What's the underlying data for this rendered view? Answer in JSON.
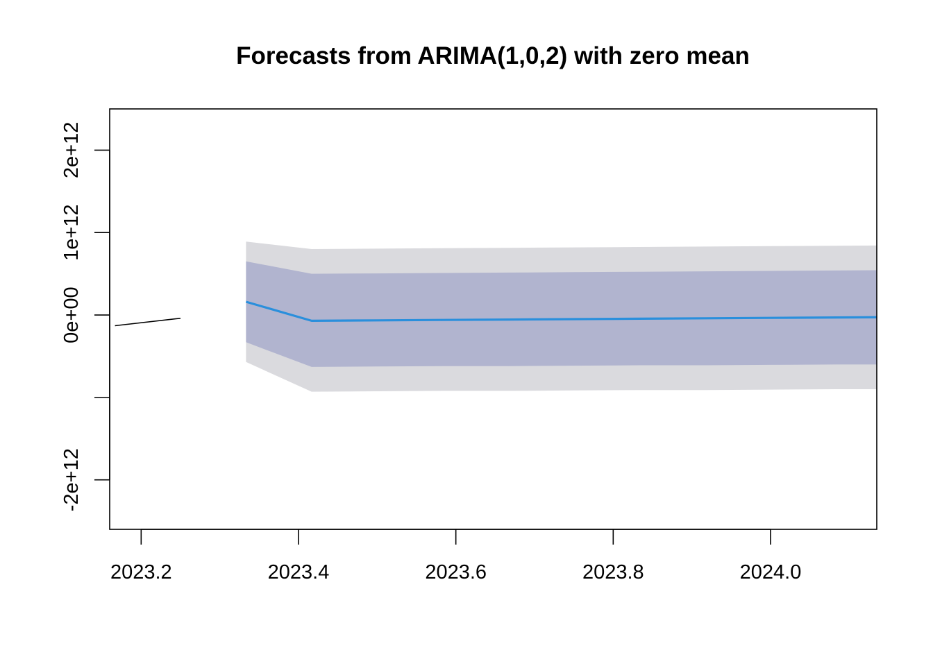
{
  "chart_data": {
    "type": "line",
    "title": "Forecasts from ARIMA(1,0,2) with zero mean",
    "xlabel": "",
    "ylabel": "",
    "xlim": [
      2023.16,
      2024.135
    ],
    "ylim": [
      -2600000000000.0,
      2500000000000.0
    ],
    "x_ticks": [
      2023.2,
      2023.4,
      2023.6,
      2023.8,
      2024.0
    ],
    "x_tick_labels": [
      "2023.2",
      "2023.4",
      "2023.6",
      "2023.8",
      "2024.0"
    ],
    "y_ticks": [
      -2000000000000.0,
      -1000000000000.0,
      0,
      1000000000000.0,
      2000000000000.0
    ],
    "y_tick_labels": [
      "-2e+12",
      "",
      "0e+00",
      "1e+12",
      "2e+12"
    ],
    "grid": false,
    "legend": "none",
    "observed": {
      "x": [
        2023.1667,
        2023.25
      ],
      "y": [
        -130000000000.0,
        -40000000000.0
      ],
      "color": "#000000"
    },
    "forecast": {
      "x": [
        2023.3333,
        2023.4167,
        2023.5,
        2023.5833,
        2023.6667,
        2023.75,
        2023.8333,
        2023.9167,
        2024.0,
        2024.0833,
        2024.1667
      ],
      "mean": [
        160000000000.0,
        -70000000000.0,
        -65000000000.0,
        -60000000000.0,
        -55000000000.0,
        -50000000000.0,
        -45000000000.0,
        -40000000000.0,
        -35000000000.0,
        -30000000000.0,
        -25000000000.0
      ],
      "lo80": [
        -330000000000.0,
        -630000000000.0,
        -625000000000.0,
        -620000000000.0,
        -620000000000.0,
        -615000000000.0,
        -610000000000.0,
        -610000000000.0,
        -605000000000.0,
        -600000000000.0,
        -600000000000.0
      ],
      "hi80": [
        650000000000.0,
        500000000000.0,
        505000000000.0,
        510000000000.0,
        515000000000.0,
        520000000000.0,
        525000000000.0,
        530000000000.0,
        535000000000.0,
        540000000000.0,
        545000000000.0
      ],
      "lo95": [
        -570000000000.0,
        -930000000000.0,
        -925000000000.0,
        -920000000000.0,
        -920000000000.0,
        -915000000000.0,
        -910000000000.0,
        -910000000000.0,
        -905000000000.0,
        -900000000000.0,
        -900000000000.0
      ],
      "hi95": [
        890000000000.0,
        800000000000.0,
        805000000000.0,
        810000000000.0,
        815000000000.0,
        820000000000.0,
        825000000000.0,
        830000000000.0,
        835000000000.0,
        840000000000.0,
        845000000000.0
      ],
      "mean_color": "#2a8fdc",
      "band80_color": "#b1b4cf",
      "band95_color": "#dadade"
    }
  }
}
